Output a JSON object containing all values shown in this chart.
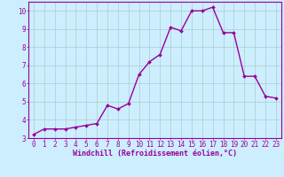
{
  "x": [
    0,
    1,
    2,
    3,
    4,
    5,
    6,
    7,
    8,
    9,
    10,
    11,
    12,
    13,
    14,
    15,
    16,
    17,
    18,
    19,
    20,
    21,
    22,
    23
  ],
  "y": [
    3.2,
    3.5,
    3.5,
    3.5,
    3.6,
    3.7,
    3.8,
    4.8,
    4.6,
    4.9,
    6.5,
    7.2,
    7.6,
    9.1,
    8.9,
    10.0,
    10.0,
    10.2,
    8.8,
    8.8,
    6.4,
    6.4,
    5.3,
    5.2
  ],
  "line_color": "#990099",
  "marker": "D",
  "marker_size": 2.0,
  "bg_color": "#cceeff",
  "grid_color": "#aacccc",
  "tick_color": "#990099",
  "xlabel": "Windchill (Refroidissement éolien,°C)",
  "xlabel_fontsize": 6.0,
  "ylim": [
    3,
    10.5
  ],
  "xlim": [
    -0.5,
    23.5
  ],
  "yticks": [
    3,
    4,
    5,
    6,
    7,
    8,
    9,
    10
  ],
  "xticks": [
    0,
    1,
    2,
    3,
    4,
    5,
    6,
    7,
    8,
    9,
    10,
    11,
    12,
    13,
    14,
    15,
    16,
    17,
    18,
    19,
    20,
    21,
    22,
    23
  ],
  "tick_fontsize": 5.5,
  "line_width": 1.0,
  "spine_color": "#990099"
}
